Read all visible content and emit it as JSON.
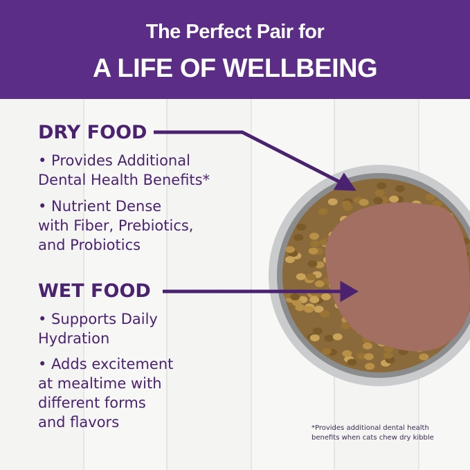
{
  "header": {
    "line1": "The Perfect Pair for",
    "line2": "A LIFE OF WELLBEING"
  },
  "dry": {
    "title": "DRY FOOD",
    "bullets": [
      "• Provides Additional\nDental Health Benefits*",
      "• Nutrient Dense\nwith Fiber, Prebiotics,\nand Probiotics"
    ]
  },
  "wet": {
    "title": "WET FOOD",
    "bullets": [
      "• Supports Daily\nHydration",
      "• Adds excitement\nat mealtime with\ndifferent forms\nand flavors"
    ]
  },
  "footnote": "*Provides additional dental health\nbenefits when cats chew dry kibble",
  "colors": {
    "brand": "#5b2d86",
    "text": "#4a2270"
  }
}
